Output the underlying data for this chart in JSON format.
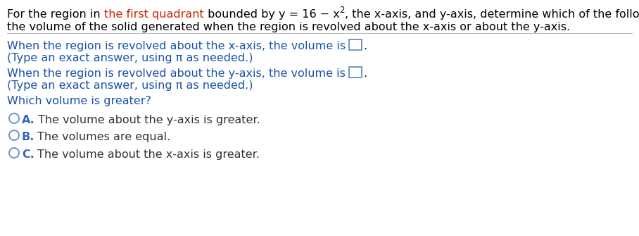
{
  "header_line1_black1": "For the region in ",
  "header_line1_red": "the first quadrant",
  "header_line1_black2": " bounded by y = 16 − x",
  "header_line1_sup": "2",
  "header_line1_black3": ", the x-axis, and y-axis, determine which of the following is greater:",
  "header_line2": "the volume of the solid generated when the region is revolved about the x-axis or about the y-axis.",
  "header_color": "#000000",
  "header_red": "#cc2200",
  "separator_color": "#bbbbbb",
  "q1_line1_main": "When the region is revolved about the x-axis, the volume is ",
  "q1_line1_color": "#1a52a8",
  "q1_line2": "(Type an exact answer, using π as needed.)",
  "q1_line2_color": "#1a52a8",
  "q2_line1_main": "When the region is revolved about the y-axis, the volume is ",
  "q2_line1_color": "#1a52a8",
  "q2_line2": "(Type an exact answer, using π as needed.)",
  "q2_line2_color": "#1a52a8",
  "which_label": "Which volume is greater?",
  "which_color": "#1a52a8",
  "options": [
    {
      "label": "A.",
      "text": "The volume about the y-axis is greater.",
      "label_color": "#3366bb",
      "text_color": "#333333"
    },
    {
      "label": "B.",
      "text": "The volumes are equal.",
      "label_color": "#3366bb",
      "text_color": "#333333"
    },
    {
      "label": "C.",
      "text": "The volume about the x-axis is greater.",
      "label_color": "#3366bb",
      "text_color": "#333333"
    }
  ],
  "circle_color": "#7799cc",
  "box_color": "#5588bb",
  "background_color": "#ffffff",
  "font_size": 11.5,
  "font_family": "DejaVu Sans"
}
